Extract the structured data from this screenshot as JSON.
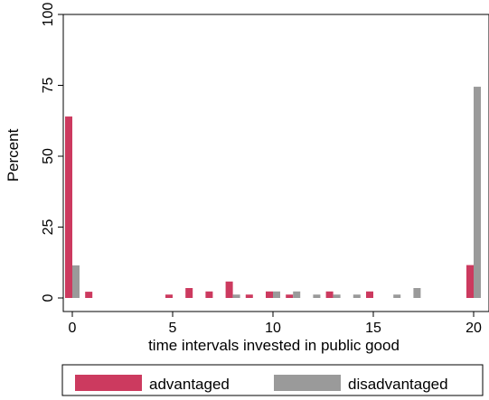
{
  "chart_data": {
    "type": "bar",
    "xlabel": "time intervals invested in public good",
    "ylabel": "Percent",
    "xlim": [
      -0.5,
      20.5
    ],
    "ylim": [
      0,
      100
    ],
    "xticks": [
      0,
      5,
      10,
      15,
      20
    ],
    "yticks": [
      0,
      25,
      50,
      75,
      100
    ],
    "grid": false,
    "legend_position": "bottom",
    "series": [
      {
        "name": "advantaged",
        "color": "#cc3a5f",
        "points": [
          {
            "x": 0,
            "y": 64.0
          },
          {
            "x": 1,
            "y": 2.2
          },
          {
            "x": 5,
            "y": 1.2
          },
          {
            "x": 6,
            "y": 3.5
          },
          {
            "x": 7,
            "y": 2.3
          },
          {
            "x": 8,
            "y": 5.8
          },
          {
            "x": 9,
            "y": 1.2
          },
          {
            "x": 10,
            "y": 2.3
          },
          {
            "x": 11,
            "y": 1.2
          },
          {
            "x": 13,
            "y": 2.3
          },
          {
            "x": 15,
            "y": 2.3
          },
          {
            "x": 20,
            "y": 11.6
          }
        ]
      },
      {
        "name": "disadvantaged",
        "color": "#9a9a9a",
        "points": [
          {
            "x": 0,
            "y": 11.5
          },
          {
            "x": 8,
            "y": 1.2
          },
          {
            "x": 10,
            "y": 2.3
          },
          {
            "x": 11,
            "y": 2.3
          },
          {
            "x": 12,
            "y": 1.2
          },
          {
            "x": 13,
            "y": 1.2
          },
          {
            "x": 14,
            "y": 1.2
          },
          {
            "x": 16,
            "y": 1.2
          },
          {
            "x": 17,
            "y": 3.5
          },
          {
            "x": 20,
            "y": 74.5
          }
        ]
      }
    ]
  }
}
